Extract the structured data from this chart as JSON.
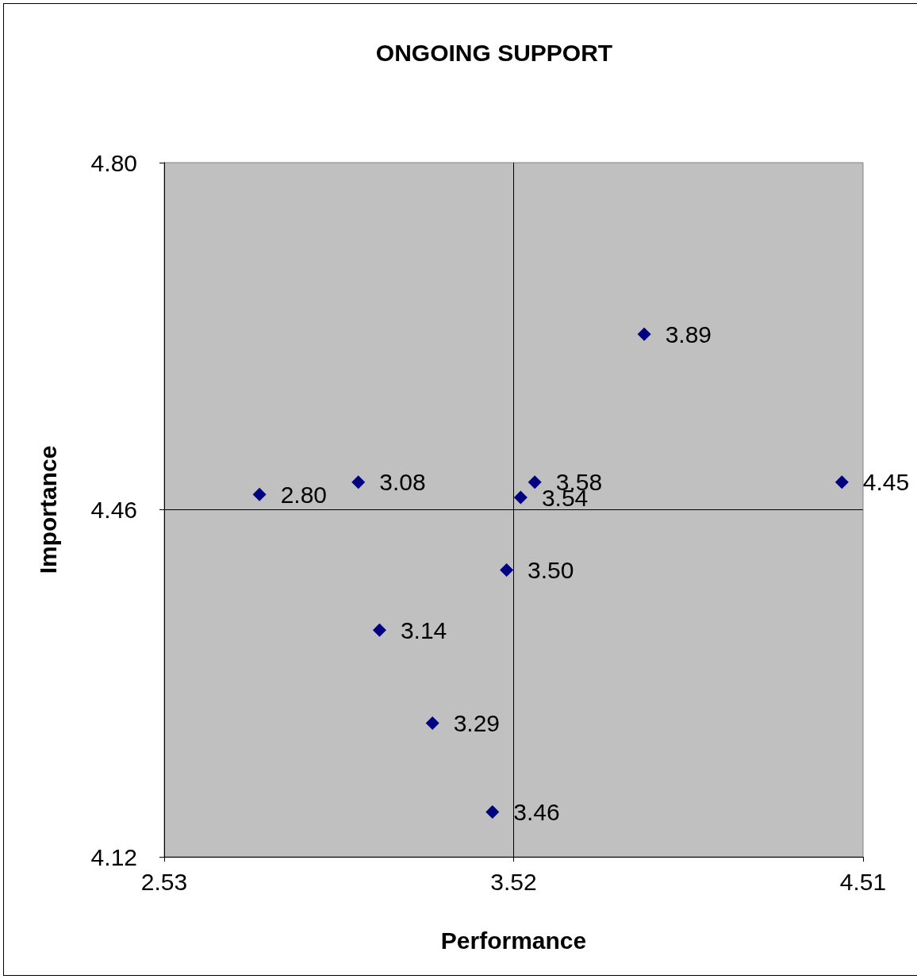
{
  "chart_data": {
    "type": "scatter",
    "title": "ONGOING SUPPORT",
    "xlabel": "Performance",
    "ylabel": "Importance",
    "x": [
      2.8,
      3.08,
      3.58,
      3.54,
      4.45,
      3.89,
      3.5,
      3.14,
      3.29,
      3.46
    ],
    "series": [
      {
        "color": "#000080",
        "values": [
          4.475,
          4.487,
          4.487,
          4.472,
          4.487,
          4.632,
          4.401,
          4.342,
          4.251,
          4.164
        ]
      }
    ],
    "value_labels": [
      "2.80",
      "3.08",
      "3.58",
      "3.54",
      "4.45",
      "3.89",
      "3.50",
      "3.14",
      "3.29",
      "3.46"
    ],
    "xlim": [
      2.53,
      4.51
    ],
    "xticks": [
      2.53,
      3.52,
      4.51
    ],
    "ylim": [
      4.12,
      4.8
    ],
    "yticks": [
      4.12,
      4.46,
      {
        "value": 4.8,
        "label": "4.80"
      }
    ],
    "ref_lines": [
      {
        "axis": "x",
        "value": 3.52
      },
      {
        "axis": "y",
        "value": 4.46
      }
    ],
    "grid": false,
    "marker": "diamond"
  }
}
